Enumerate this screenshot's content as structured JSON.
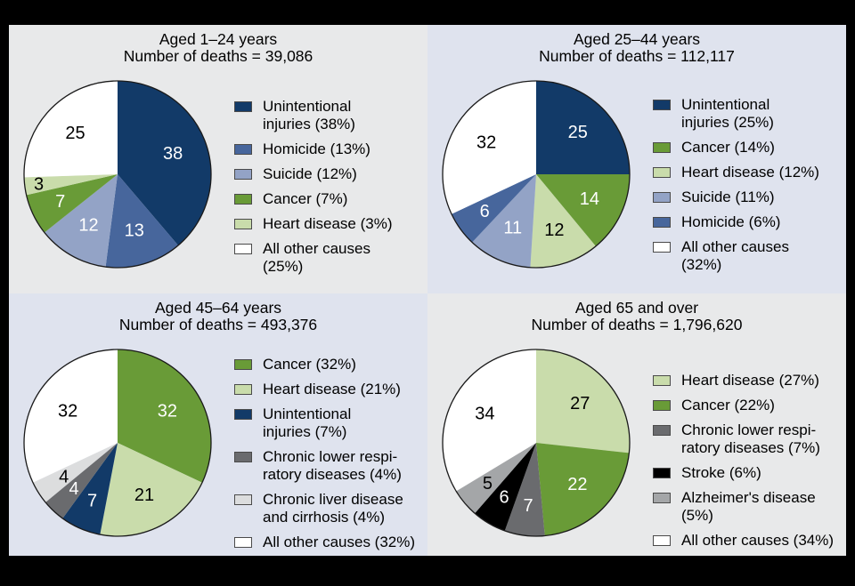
{
  "figure": {
    "background": "#000000",
    "panel_bg_gray": "#e8e9ea",
    "panel_bg_blue": "#dfe3ee",
    "pie_outline": "#1a1a1a"
  },
  "chart_data": [
    {
      "type": "pie",
      "title": "Aged 1–24 years",
      "subtitle": "Number of deaths = 39,086",
      "start": "12-oclock",
      "direction": "clockwise",
      "legend_position": "right",
      "slices": [
        {
          "label": "Unintentional injuries (38%)",
          "lines": [
            "Unintentional",
            "injuries (38%)"
          ],
          "value": 38,
          "color": "#123a68",
          "label_color": "#ffffff"
        },
        {
          "label": "Homicide (13%)",
          "lines": [
            "Homicide (13%)"
          ],
          "value": 13,
          "color": "#47669c",
          "label_color": "#ffffff"
        },
        {
          "label": "Suicide (12%)",
          "lines": [
            "Suicide (12%)"
          ],
          "value": 12,
          "color": "#93a3c6",
          "label_color": "#ffffff"
        },
        {
          "label": "Cancer (7%)",
          "lines": [
            "Cancer (7%)"
          ],
          "value": 7,
          "color": "#699b37",
          "label_color": "#ffffff"
        },
        {
          "label": "Heart disease (3%)",
          "lines": [
            "Heart disease (3%)"
          ],
          "value": 3,
          "color": "#c9dcab",
          "label_color": "#000000",
          "lr": 0.85
        },
        {
          "label": "All other causes (25%)",
          "lines": [
            "All other causes",
            "(25%)"
          ],
          "value": 25,
          "color": "#ffffff",
          "label_color": "#000000"
        }
      ]
    },
    {
      "type": "pie",
      "title": "Aged 25–44 years",
      "subtitle": "Number of deaths = 112,117",
      "start": "12-oclock",
      "direction": "clockwise",
      "legend_position": "right",
      "slices": [
        {
          "label": "Unintentional injuries (25%)",
          "lines": [
            "Unintentional",
            "injuries (25%)"
          ],
          "value": 25,
          "color": "#123a68",
          "label_color": "#ffffff"
        },
        {
          "label": "Cancer (14%)",
          "lines": [
            "Cancer (14%)"
          ],
          "value": 14,
          "color": "#699b37",
          "label_color": "#ffffff"
        },
        {
          "label": "Heart disease (12%)",
          "lines": [
            "Heart disease (12%)"
          ],
          "value": 12,
          "color": "#c9dcab",
          "label_color": "#000000"
        },
        {
          "label": "Suicide (11%)",
          "lines": [
            "Suicide (11%)"
          ],
          "value": 11,
          "color": "#93a3c6",
          "label_color": "#ffffff"
        },
        {
          "label": "Homicide (6%)",
          "lines": [
            "Homicide (6%)"
          ],
          "value": 6,
          "color": "#47669c",
          "label_color": "#ffffff"
        },
        {
          "label": "All other causes (32%)",
          "lines": [
            "All other causes",
            "(32%)"
          ],
          "value": 32,
          "color": "#ffffff",
          "label_color": "#000000"
        }
      ]
    },
    {
      "type": "pie",
      "title": "Aged 45–64 years",
      "subtitle": "Number of deaths = 493,376",
      "start": "12-oclock",
      "direction": "clockwise",
      "legend_position": "right",
      "slices": [
        {
          "label": "Cancer (32%)",
          "lines": [
            "Cancer (32%)"
          ],
          "value": 32,
          "color": "#699b37",
          "label_color": "#ffffff"
        },
        {
          "label": "Heart disease (21%)",
          "lines": [
            "Heart disease (21%)"
          ],
          "value": 21,
          "color": "#c9dcab",
          "label_color": "#000000"
        },
        {
          "label": "Unintentional injuries (7%)",
          "lines": [
            "Unintentional",
            "injuries (7%)"
          ],
          "value": 7,
          "color": "#123a68",
          "label_color": "#ffffff"
        },
        {
          "label": "Chronic lower respiratory diseases (4%)",
          "lines": [
            "Chronic lower respi-",
            "ratory diseases (4%)"
          ],
          "value": 4,
          "color": "#6a6b6e",
          "label_color": "#ffffff"
        },
        {
          "label": "Chronic liver disease and cirrhosis (4%)",
          "lines": [
            "Chronic liver disease",
            "and cirrhosis (4%)"
          ],
          "value": 4,
          "color": "#dcddde",
          "label_color": "#000000"
        },
        {
          "label": "All other causes (32%)",
          "lines": [
            "All other causes (32%)"
          ],
          "value": 32,
          "color": "#ffffff",
          "label_color": "#000000"
        }
      ]
    },
    {
      "type": "pie",
      "title": "Aged 65 and over",
      "subtitle": "Number of deaths = 1,796,620",
      "start": "12-oclock",
      "direction": "clockwise",
      "legend_position": "right",
      "slices": [
        {
          "label": "Heart disease (27%)",
          "lines": [
            "Heart disease (27%)"
          ],
          "value": 27,
          "color": "#c9dcab",
          "label_color": "#000000"
        },
        {
          "label": "Cancer (22%)",
          "lines": [
            "Cancer (22%)"
          ],
          "value": 22,
          "color": "#699b37",
          "label_color": "#ffffff"
        },
        {
          "label": "Chronic lower respiratory diseases (7%)",
          "lines": [
            "Chronic lower respi-",
            "ratory diseases (7%)"
          ],
          "value": 7,
          "color": "#6a6b6e",
          "label_color": "#ffffff"
        },
        {
          "label": "Stroke (6%)",
          "lines": [
            "Stroke (6%)"
          ],
          "value": 6,
          "color": "#000000",
          "label_color": "#ffffff"
        },
        {
          "label": "Alzheimer's disease (5%)",
          "lines": [
            "Alzheimer's disease",
            "(5%)"
          ],
          "value": 5,
          "color": "#a4a6a8",
          "label_color": "#000000"
        },
        {
          "label": "All other causes (34%)",
          "lines": [
            "All other causes (34%)"
          ],
          "value": 34,
          "color": "#ffffff",
          "label_color": "#000000"
        }
      ]
    }
  ]
}
